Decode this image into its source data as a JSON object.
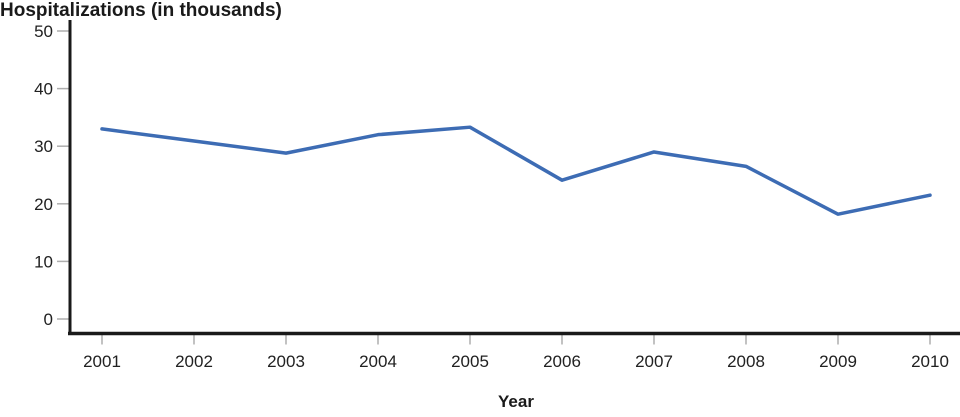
{
  "chart_data": {
    "type": "line",
    "title": "Hospitalizations (in thousands)",
    "xlabel": "Year",
    "ylabel": "Hospitalizations (in thousands)",
    "categories": [
      2001,
      2002,
      2003,
      2004,
      2005,
      2006,
      2007,
      2008,
      2009,
      2010
    ],
    "values": [
      33.0,
      30.9,
      28.8,
      32.0,
      33.3,
      24.1,
      29.0,
      26.5,
      18.2,
      21.5
    ],
    "ylim": [
      0,
      50
    ],
    "yticks": [
      0,
      10,
      20,
      30,
      40,
      50
    ],
    "grid": false,
    "legend": false,
    "colors": {
      "line": "#3d6cb4",
      "axis": "#1a1a1a",
      "tick": "#aeaeae",
      "label": "#212121"
    }
  }
}
